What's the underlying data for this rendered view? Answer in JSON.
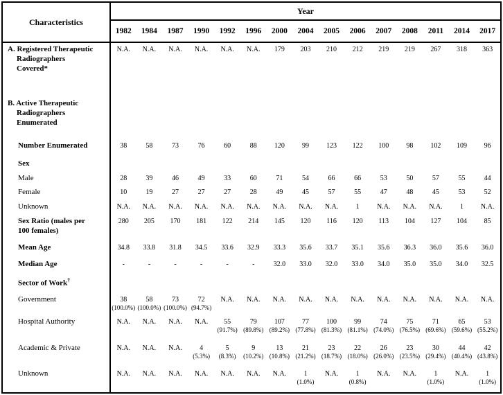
{
  "table": {
    "header": {
      "characteristics_label": "Characteristics",
      "year_label": "Year",
      "years": [
        "1982",
        "1984",
        "1987",
        "1990",
        "1992",
        "1996",
        "2000",
        "2004",
        "2005",
        "2006",
        "2007",
        "2008",
        "2011",
        "2014",
        "2017"
      ]
    },
    "rows": [
      {
        "id": "registered-covered",
        "label": "A. Registered Therapeutic\nRadiographers\nCovered*",
        "level": "section",
        "values": [
          "N.A.",
          "N.A.",
          "N.A.",
          "N.A.",
          "N.A.",
          "N.A.",
          "179",
          "203",
          "210",
          "212",
          "219",
          "219",
          "267",
          "318",
          "363"
        ]
      },
      {
        "id": "active-enumerated",
        "label": "B. Active Therapeutic\nRadiographers\nEnumerated",
        "level": "section",
        "values": [
          "",
          "",
          "",
          "",
          "",
          "",
          "",
          "",
          "",
          "",
          "",
          "",
          "",
          "",
          ""
        ]
      },
      {
        "id": "number-enumerated",
        "label": "Number Enumerated",
        "level": "subsection",
        "values": [
          "38",
          "58",
          "73",
          "76",
          "60",
          "88",
          "120",
          "99",
          "123",
          "122",
          "100",
          "98",
          "102",
          "109",
          "96"
        ]
      },
      {
        "id": "sex",
        "label": "Sex",
        "level": "subsection",
        "values": [
          "",
          "",
          "",
          "",
          "",
          "",
          "",
          "",
          "",
          "",
          "",
          "",
          "",
          "",
          ""
        ]
      },
      {
        "id": "male",
        "label": "Male",
        "level": "item",
        "values": [
          "28",
          "39",
          "46",
          "49",
          "33",
          "60",
          "71",
          "54",
          "66",
          "66",
          "53",
          "50",
          "57",
          "55",
          "44"
        ]
      },
      {
        "id": "female",
        "label": "Female",
        "level": "item",
        "values": [
          "10",
          "19",
          "27",
          "27",
          "27",
          "28",
          "49",
          "45",
          "57",
          "55",
          "47",
          "48",
          "45",
          "53",
          "52"
        ]
      },
      {
        "id": "sex-unknown",
        "label": "Unknown",
        "level": "item",
        "values": [
          "N.A.",
          "N.A.",
          "N.A.",
          "N.A.",
          "N.A.",
          "N.A.",
          "N.A.",
          "N.A.",
          "N.A.",
          "1",
          "N.A.",
          "N.A.",
          "N.A.",
          "1",
          "N.A."
        ]
      },
      {
        "id": "sex-ratio",
        "label": "Sex Ratio (males per\n100 females)",
        "level": "subsection",
        "values": [
          "280",
          "205",
          "170",
          "181",
          "122",
          "214",
          "145",
          "120",
          "116",
          "120",
          "113",
          "104",
          "127",
          "104",
          "85"
        ]
      },
      {
        "id": "mean-age",
        "label": "Mean Age",
        "level": "subsection",
        "values": [
          "34.8",
          "33.8",
          "31.8",
          "34.5",
          "33.6",
          "32.9",
          "33.3",
          "35.6",
          "33.7",
          "35.1",
          "35.6",
          "36.3",
          "36.0",
          "35.6",
          "36.0"
        ]
      },
      {
        "id": "median-age",
        "label": "Median Age",
        "level": "subsection",
        "values": [
          "-",
          "-",
          "-",
          "-",
          "-",
          "-",
          "32.0",
          "33.0",
          "32.0",
          "33.0",
          "34.0",
          "35.0",
          "35.0",
          "34.0",
          "32.5"
        ]
      },
      {
        "id": "sector-of-work",
        "label": "Sector of Work",
        "sup": "†",
        "level": "subsection",
        "values": [
          "",
          "",
          "",
          "",
          "",
          "",
          "",
          "",
          "",
          "",
          "",
          "",
          "",
          "",
          ""
        ]
      },
      {
        "id": "government",
        "label": "Government",
        "level": "item",
        "values": [
          [
            "38",
            "(100.0%)"
          ],
          [
            "58",
            "(100.0%)"
          ],
          [
            "73",
            "(100.0%)"
          ],
          [
            "72",
            "(94.7%)"
          ],
          "N.A.",
          "N.A.",
          "N.A.",
          "N.A.",
          "N.A.",
          "N.A.",
          "N.A.",
          "N.A.",
          "N.A.",
          "N.A.",
          "N.A."
        ]
      },
      {
        "id": "hospital-authority",
        "label": "Hospital Authority",
        "level": "item",
        "values": [
          "N.A.",
          "N.A.",
          "N.A.",
          "N.A.",
          [
            "55",
            "(91.7%)"
          ],
          [
            "79",
            "(89.8%)"
          ],
          [
            "107",
            "(89.2%)"
          ],
          [
            "77",
            "(77.8%)"
          ],
          [
            "100",
            "(81.3%)"
          ],
          [
            "99",
            "(81.1%)"
          ],
          [
            "74",
            "(74.0%)"
          ],
          [
            "75",
            "(76.5%)"
          ],
          [
            "71",
            "(69.6%)"
          ],
          [
            "65",
            "(59.6%)"
          ],
          [
            "53",
            "(55.2%)"
          ]
        ]
      },
      {
        "id": "academic-private",
        "label": "Academic & Private",
        "level": "item",
        "values": [
          "N.A.",
          "N.A.",
          "N.A.",
          [
            "4",
            "(5.3%)"
          ],
          [
            "5",
            "(8.3%)"
          ],
          [
            "9",
            "(10.2%)"
          ],
          [
            "13",
            "(10.8%)"
          ],
          [
            "21",
            "(21.2%)"
          ],
          [
            "23",
            "(18.7%)"
          ],
          [
            "22",
            "(18.0%)"
          ],
          [
            "26",
            "(26.0%)"
          ],
          [
            "23",
            "(23.5%)"
          ],
          [
            "30",
            "(29.4%)"
          ],
          [
            "44",
            "(40.4%)"
          ],
          [
            "42",
            "(43.8%)"
          ]
        ]
      },
      {
        "id": "sector-unknown",
        "label": "Unknown",
        "level": "item",
        "values": [
          "N.A.",
          "N.A.",
          "N.A.",
          "N.A.",
          "N.A.",
          "N.A.",
          "N.A.",
          [
            "1",
            "(1.0%)"
          ],
          "N.A.",
          [
            "1",
            "(0.8%)"
          ],
          "N.A.",
          "N.A.",
          [
            "1",
            "(1.0%)"
          ],
          "N.A.",
          [
            "1",
            "(1.0%)"
          ]
        ]
      }
    ]
  }
}
